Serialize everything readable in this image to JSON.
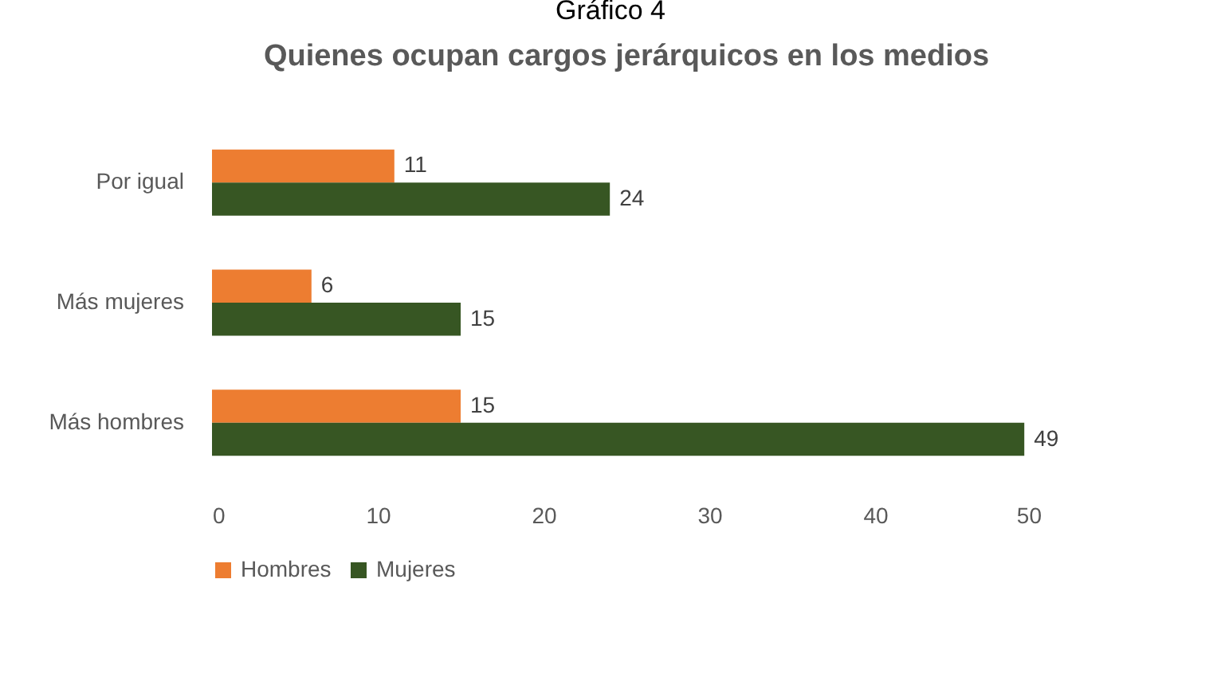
{
  "chart_data": {
    "type": "bar",
    "orientation": "horizontal",
    "title": "Quienes ocupan cargos jerárquicos en los medios",
    "annotations": [
      "Gráfico 4"
    ],
    "categories": [
      "Por igual",
      "Más mujeres",
      "Más hombres"
    ],
    "series": [
      {
        "name": "Hombres",
        "color": "#ed7d31",
        "values": [
          11,
          6,
          15
        ]
      },
      {
        "name": "Mujeres",
        "color": "#375623",
        "values": [
          24,
          15,
          49
        ]
      }
    ],
    "xlim": [
      0,
      50
    ],
    "xticks": [
      0,
      10,
      20,
      30,
      40,
      50
    ],
    "grid": false,
    "legend": "bottom",
    "data_labels": true
  }
}
